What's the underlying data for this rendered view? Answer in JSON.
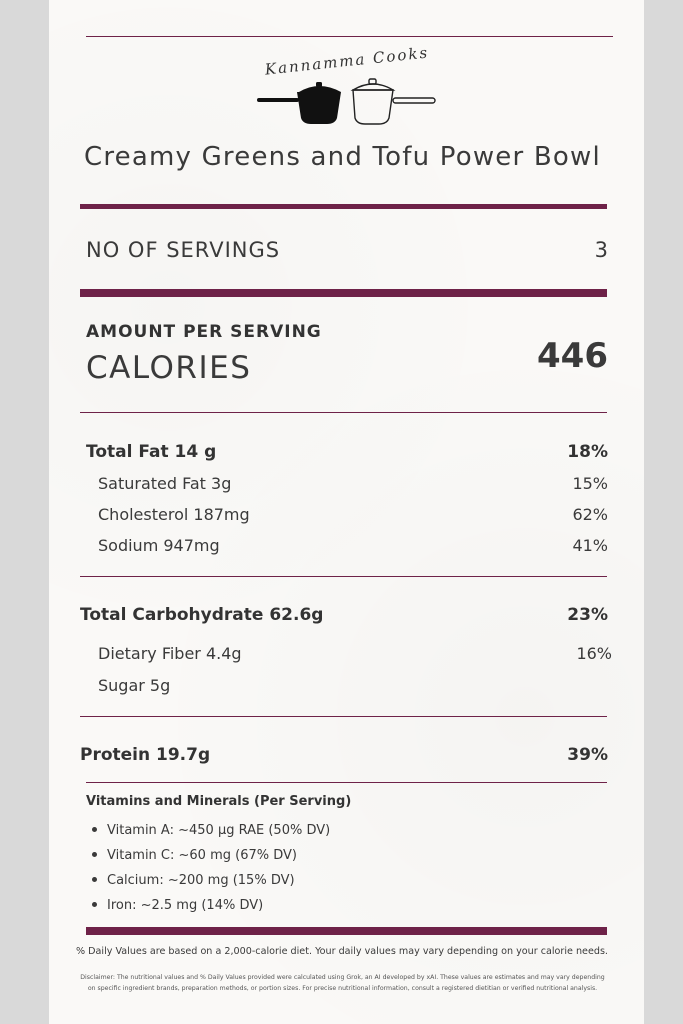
{
  "brand": {
    "logo_text": "Kannamma Cooks"
  },
  "recipe": {
    "title": "Creamy Greens and Tofu Power Bowl"
  },
  "servings": {
    "label": "NO OF SERVINGS",
    "value": "3"
  },
  "calories": {
    "amount_per_serving": "AMOUNT PER SERVING",
    "label": "CALORIES",
    "value": "446"
  },
  "nutrients": {
    "total_fat": {
      "label": "Total Fat  14 g",
      "dv": "18%"
    },
    "saturated_fat": {
      "label": "Saturated Fat 3g",
      "dv": "15%"
    },
    "cholesterol": {
      "label": "Cholesterol 187mg",
      "dv": "62%"
    },
    "sodium": {
      "label": "Sodium 947mg",
      "dv": "41%"
    },
    "total_carbohydrate": {
      "label": "Total Carbohydrate 62.6g",
      "dv": "23%"
    },
    "dietary_fiber": {
      "label": "Dietary Fiber 4.4g",
      "dv": "16%"
    },
    "sugar": {
      "label": "Sugar 5g"
    },
    "protein": {
      "label": "Protein 19.7g",
      "dv": "39%"
    }
  },
  "vitamins": {
    "title": "Vitamins and Minerals (Per Serving)",
    "items": [
      "Vitamin A: ~450 µg RAE (50% DV)",
      "Vitamin C: ~60 mg (67% DV)",
      "Calcium: ~200 mg (15% DV)",
      "Iron: ~2.5 mg (14% DV)"
    ]
  },
  "footer": {
    "daily_values_note": "% Daily Values are based on a 2,000-calorie diet. Your daily values may vary depending on your calorie needs.",
    "disclaimer": "Disclaimer: The nutritional values and % Daily Values provided were calculated using Grok, an AI developed by xAI. These values are estimates and may vary depending on specific ingredient brands, preparation methods, or portion sizes. For precise nutritional information, consult a registered dietitian or verified nutritional analysis."
  },
  "colors": {
    "accent": "#6e2248",
    "text": "#3a3a3a",
    "card": "#faf9f7",
    "page": "#d9d9d9"
  },
  "icons": [
    "black-saucepan-icon",
    "outline-saucepan-icon"
  ]
}
